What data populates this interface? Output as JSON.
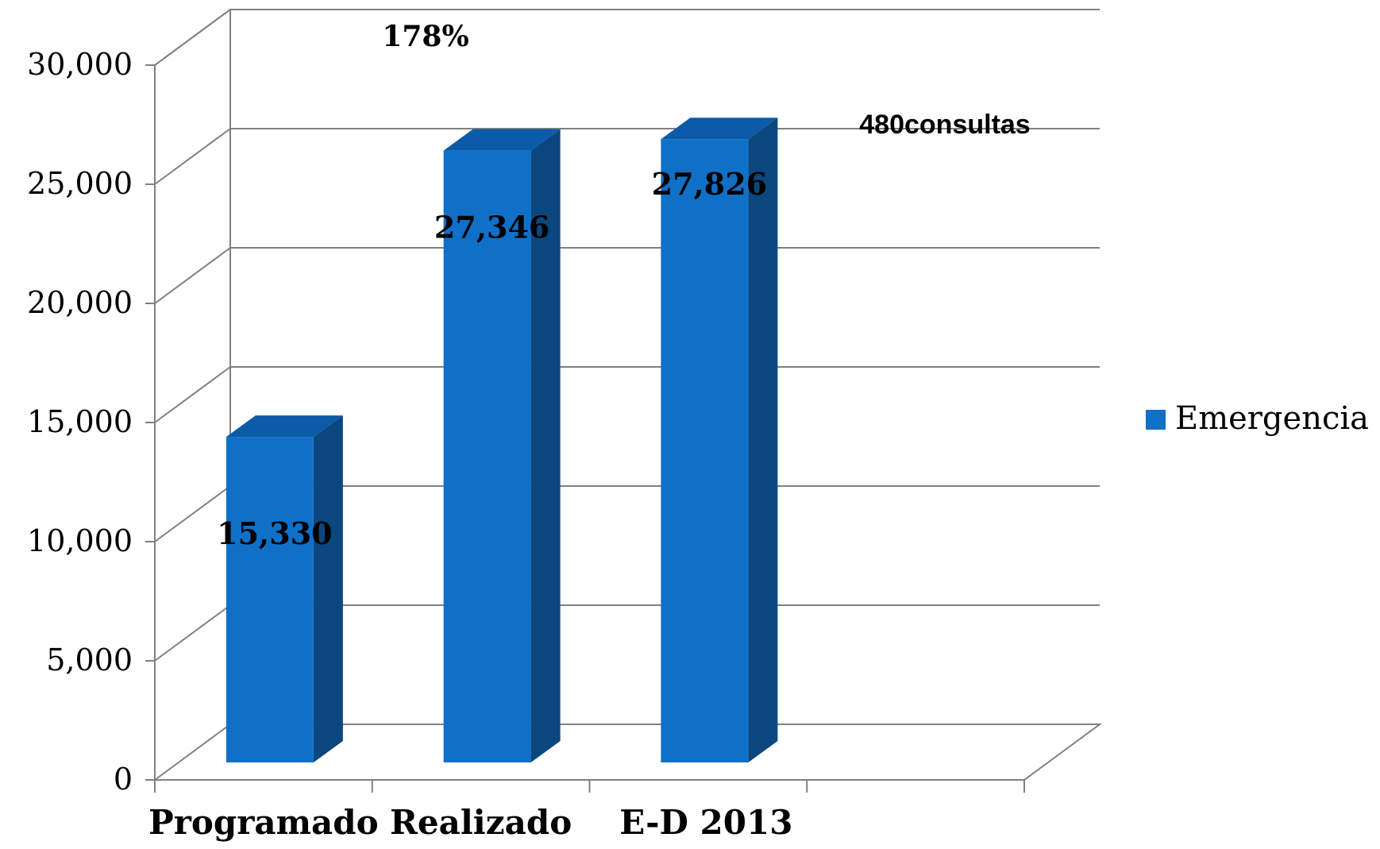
{
  "chart_data": {
    "type": "bar",
    "categories": [
      "Programado",
      "Realizado",
      "E-D 2013"
    ],
    "series": [
      {
        "name": "Emergencia",
        "values": [
          15330,
          27346,
          27826
        ]
      }
    ],
    "data_labels": [
      "15,330",
      "27,346",
      "27,826"
    ],
    "y_ticks": [
      "0",
      "5,000",
      "10,000",
      "15,000",
      "20,000",
      "25,000",
      "30,000"
    ],
    "ylim": [
      0,
      30000
    ],
    "grid": true,
    "legend_position": "right",
    "annotations": {
      "percent": "178%",
      "consultas": "480consultas"
    },
    "colors": {
      "bar_front": "#1070C8",
      "bar_top": "#0C5BA8",
      "bar_side": "#0B477F",
      "grid": "#808080"
    }
  }
}
